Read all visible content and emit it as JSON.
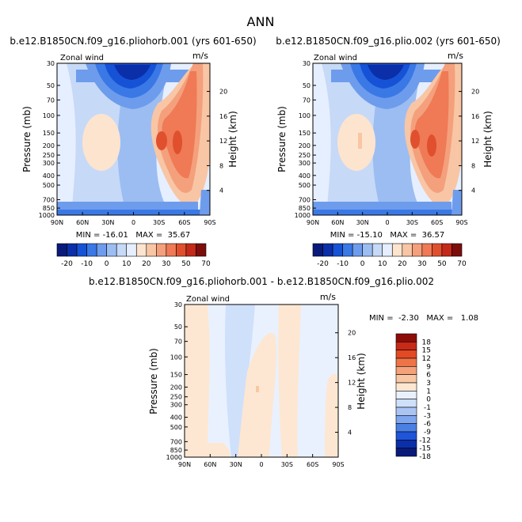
{
  "page_title": "ANN",
  "colors": {
    "wind_scale": [
      "#0a1a7a",
      "#0b2fa8",
      "#1652d6",
      "#3a78e6",
      "#6e9cec",
      "#9cbdf2",
      "#c6d9f7",
      "#e6efff",
      "#fde4cf",
      "#f8c6a5",
      "#f4a07c",
      "#ef7a55",
      "#e0502e",
      "#c32a1a",
      "#7d0d0b"
    ],
    "diff_scale": [
      "#0a1a7a",
      "#0b2fa8",
      "#1f55d9",
      "#4a7fe4",
      "#7fa6ee",
      "#aac5f4",
      "#cfe0fb",
      "#e9f1ff",
      "#fde7d2",
      "#f9c7a4",
      "#f5a179",
      "#ee7448",
      "#e24a26",
      "#c72a17",
      "#8e0c08"
    ]
  },
  "chart_data": [
    {
      "type": "heatmap",
      "title": "b.e12.B1850CN.f09_g16.pliohorb.001 (yrs 601-650)",
      "left_label": "Zonal wind",
      "right_label": "m/s",
      "xlabel": "",
      "ylabel": "Pressure (mb)",
      "y2label": "Height (km)",
      "x_ticks": [
        "90N",
        "60N",
        "30N",
        "0",
        "30S",
        "60S",
        "90S"
      ],
      "y_ticks": [
        "30",
        "50",
        "70",
        "100",
        "150",
        "200",
        "250",
        "300",
        "400",
        "500",
        "700",
        "850",
        "1000"
      ],
      "y2_ticks": [
        "20",
        "16",
        "12",
        "8",
        "4"
      ],
      "stats": "MIN = -16.01   MAX =  35.67",
      "colorbar_labels": [
        "-20",
        "-10",
        "0",
        "10",
        "20",
        "30",
        "50",
        "70"
      ],
      "colorbar_levels": [
        -20,
        -15,
        -10,
        -5,
        0,
        5,
        10,
        15,
        20,
        25,
        30,
        40,
        50,
        60,
        70
      ]
    },
    {
      "type": "heatmap",
      "title": "b.e12.B1850CN.f09_g16.plio.002 (yrs 601-650)",
      "left_label": "Zonal wind",
      "right_label": "m/s",
      "xlabel": "",
      "ylabel": "Pressure (mb)",
      "y2label": "Height (km)",
      "x_ticks": [
        "90N",
        "60N",
        "30N",
        "0",
        "30S",
        "60S",
        "90S"
      ],
      "y_ticks": [
        "30",
        "50",
        "70",
        "100",
        "150",
        "200",
        "250",
        "300",
        "400",
        "500",
        "700",
        "850",
        "1000"
      ],
      "y2_ticks": [
        "20",
        "16",
        "12",
        "8",
        "4"
      ],
      "stats": "MIN = -15.10   MAX =  36.57",
      "colorbar_labels": [
        "-20",
        "-10",
        "0",
        "10",
        "20",
        "30",
        "50",
        "70"
      ],
      "colorbar_levels": [
        -20,
        -15,
        -10,
        -5,
        0,
        5,
        10,
        15,
        20,
        25,
        30,
        40,
        50,
        60,
        70
      ]
    },
    {
      "type": "heatmap",
      "title": "b.e12.B1850CN.f09_g16.pliohorb.001 - b.e12.B1850CN.f09_g16.plio.002",
      "left_label": "Zonal wind",
      "right_label": "m/s",
      "xlabel": "",
      "ylabel": "Pressure (mb)",
      "y2label": "Height (km)",
      "x_ticks": [
        "90N",
        "60N",
        "30N",
        "0",
        "30S",
        "60S",
        "90S"
      ],
      "y_ticks": [
        "30",
        "50",
        "70",
        "100",
        "150",
        "200",
        "250",
        "300",
        "400",
        "500",
        "700",
        "850",
        "1000"
      ],
      "y2_ticks": [
        "20",
        "16",
        "12",
        "8",
        "4"
      ],
      "stats": "MIN =  -2.30   MAX =   1.08",
      "colorbar_labels": [
        "18",
        "15",
        "12",
        "9",
        "6",
        "3",
        "1",
        "0",
        "-1",
        "-3",
        "-6",
        "-9",
        "-12",
        "-15",
        "-18"
      ],
      "colorbar_levels": [
        18,
        15,
        12,
        9,
        6,
        3,
        1,
        0,
        -1,
        -3,
        -6,
        -9,
        -12,
        -15,
        -18
      ]
    }
  ]
}
